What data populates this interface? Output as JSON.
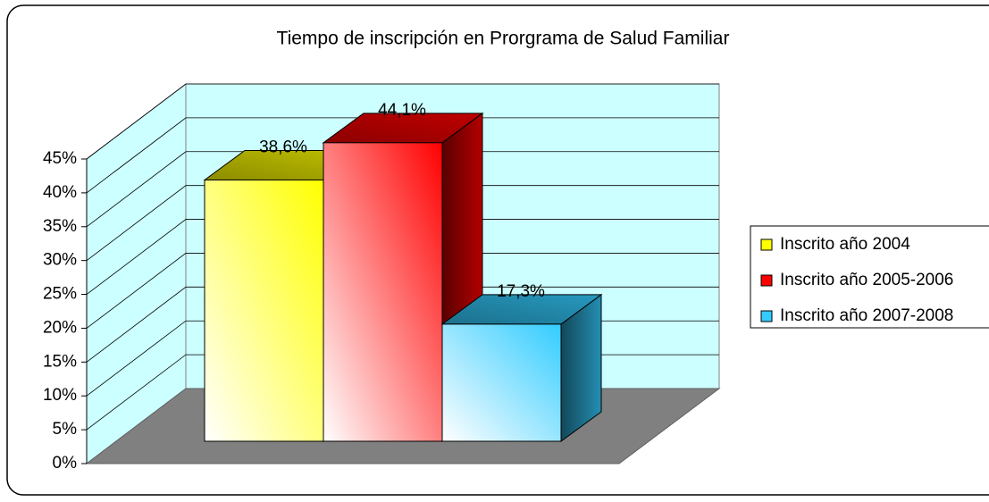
{
  "chart_data": {
    "type": "bar3d",
    "title": "Tiempo de inscripción en Prorgrama de Salud Familiar",
    "series": [
      {
        "name": "Inscrito año 2004",
        "color": "#ffff00",
        "values": [
          38.6
        ],
        "value_labels": [
          "38,6%"
        ]
      },
      {
        "name": "Inscrito año 2005-2006",
        "color": "#ff0000",
        "values": [
          44.1
        ],
        "value_labels": [
          "44,1%"
        ]
      },
      {
        "name": "Inscrito año 2007-2008",
        "color": "#33ccff",
        "values": [
          17.3
        ],
        "value_labels": [
          "17,3%"
        ]
      }
    ],
    "ylim": [
      0,
      45
    ],
    "yticks": [
      {
        "value": 0,
        "label": "0%"
      },
      {
        "value": 5,
        "label": "5%"
      },
      {
        "value": 10,
        "label": "10%"
      },
      {
        "value": 15,
        "label": "15%"
      },
      {
        "value": 20,
        "label": "20%"
      },
      {
        "value": 25,
        "label": "25%"
      },
      {
        "value": 30,
        "label": "30%"
      },
      {
        "value": 35,
        "label": "35%"
      },
      {
        "value": 40,
        "label": "40%"
      },
      {
        "value": 45,
        "label": "45%"
      }
    ],
    "grid": true,
    "legend": "right"
  }
}
